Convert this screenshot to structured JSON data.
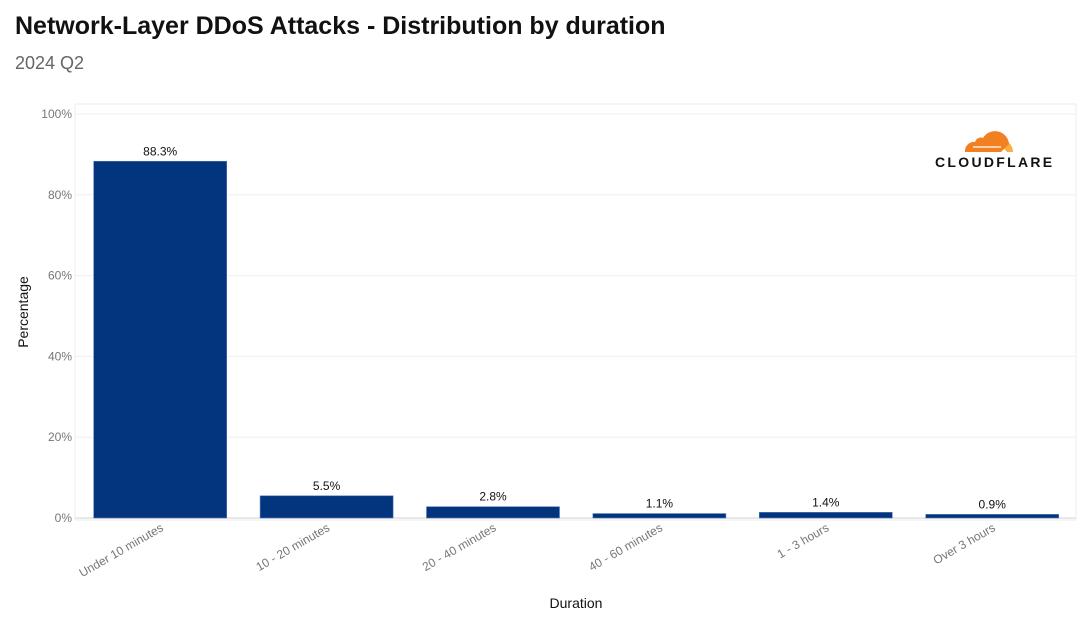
{
  "chart_data": {
    "type": "bar",
    "title": "Network-Layer DDoS Attacks - Distribution by duration",
    "subtitle": "2024 Q2",
    "xlabel": "Duration",
    "ylabel": "Percentage",
    "categories": [
      "Under 10 minutes",
      "10 - 20 minutes",
      "20 - 40 minutes",
      "40 - 60 minutes",
      "1 - 3 hours",
      "Over 3 hours"
    ],
    "values": [
      88.3,
      5.5,
      2.8,
      1.1,
      1.4,
      0.9
    ],
    "data_labels": [
      "88.3%",
      "5.5%",
      "2.8%",
      "1.1%",
      "1.4%",
      "0.9%"
    ],
    "ylim": [
      0,
      100
    ],
    "yticks": [
      "0%",
      "20%",
      "40%",
      "60%",
      "80%",
      "100%"
    ],
    "grid": true,
    "bar_color": "#03357f"
  },
  "logo": {
    "text": "CLOUDFLARE",
    "colors": [
      "#f38020",
      "#faae40"
    ]
  }
}
